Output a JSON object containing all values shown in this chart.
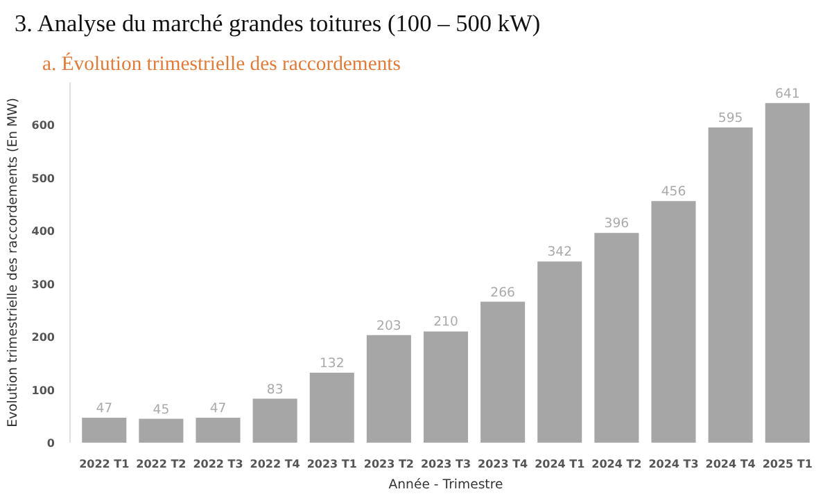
{
  "chart_data": {
    "type": "bar",
    "title": "3. Analyse du marché grandes toitures (100 – 500 kW)",
    "subtitle": "a. Évolution trimestrielle des raccordements",
    "xlabel": "Année - Trimestre",
    "ylabel": "Evolution trimestrielle des raccordements (En MW)",
    "categories": [
      "2022 T1",
      "2022 T2",
      "2022 T3",
      "2022 T4",
      "2023 T1",
      "2023 T2",
      "2023 T3",
      "2023 T4",
      "2024 T1",
      "2024 T2",
      "2024 T3",
      "2024 T4",
      "2025 T1"
    ],
    "values": [
      47,
      45,
      47,
      83,
      132,
      203,
      210,
      266,
      342,
      396,
      456,
      595,
      641
    ],
    "color": "#a6a6a6",
    "ylim": [
      0,
      680
    ],
    "yticks": [
      0,
      100,
      200,
      300,
      400,
      500,
      600
    ],
    "data_labels": true,
    "grid": false
  }
}
